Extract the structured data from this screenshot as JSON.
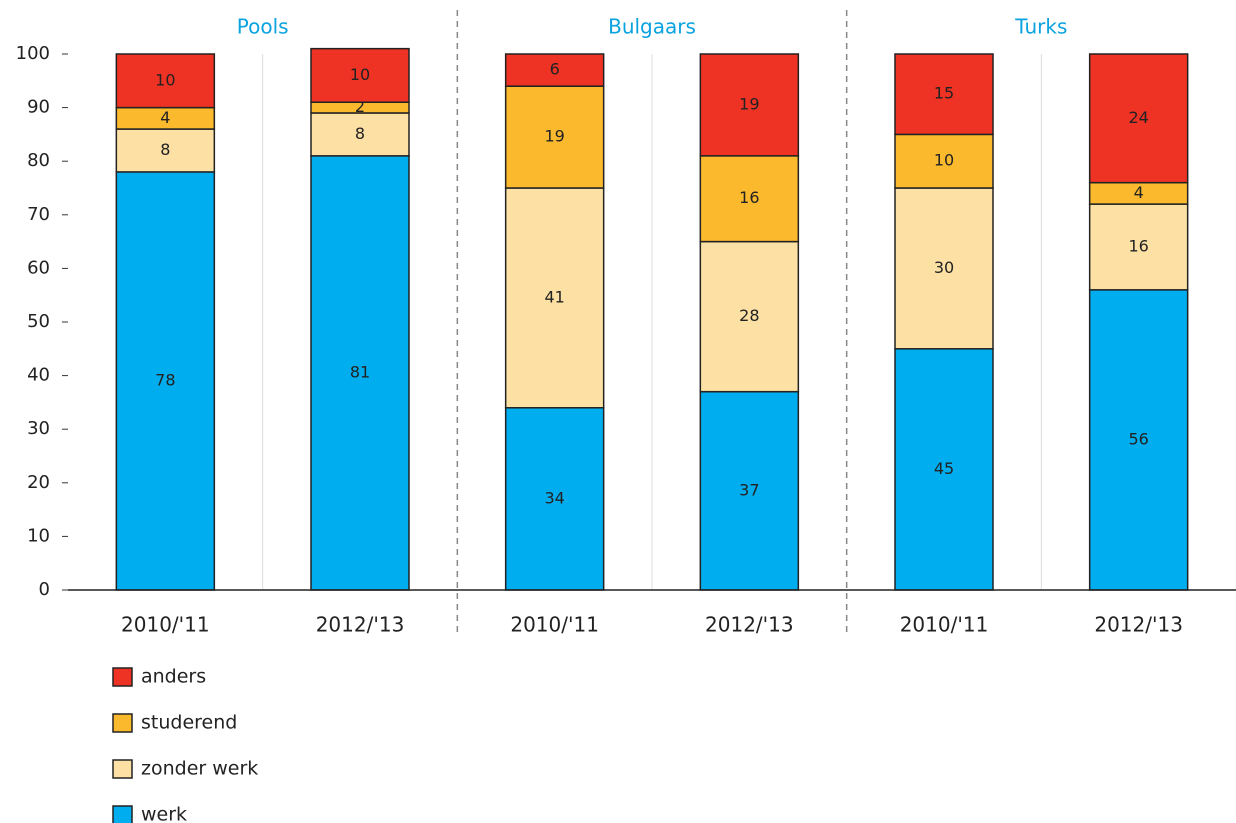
{
  "chart_data": {
    "type": "stacked_bar",
    "groups": [
      "Pools",
      "Bulgaars",
      "Turks"
    ],
    "categories": [
      "2010/'11",
      "2012/'13",
      "2010/'11",
      "2012/'13",
      "2010/'11",
      "2012/'13"
    ],
    "series": [
      {
        "name": "werk",
        "color": "#00adef",
        "values": [
          78,
          81,
          34,
          37,
          45,
          56
        ]
      },
      {
        "name": "zonder werk",
        "color": "#fde0a4",
        "values": [
          8,
          8,
          41,
          28,
          30,
          16
        ]
      },
      {
        "name": "studerend",
        "color": "#fbb92e",
        "values": [
          4,
          2,
          19,
          16,
          10,
          4
        ]
      },
      {
        "name": "anders",
        "color": "#ee3224",
        "values": [
          10,
          10,
          6,
          19,
          15,
          24
        ]
      }
    ],
    "ylim": [
      0,
      100
    ],
    "yticks": [
      0,
      10,
      20,
      30,
      40,
      50,
      60,
      70,
      80,
      90,
      100
    ]
  }
}
